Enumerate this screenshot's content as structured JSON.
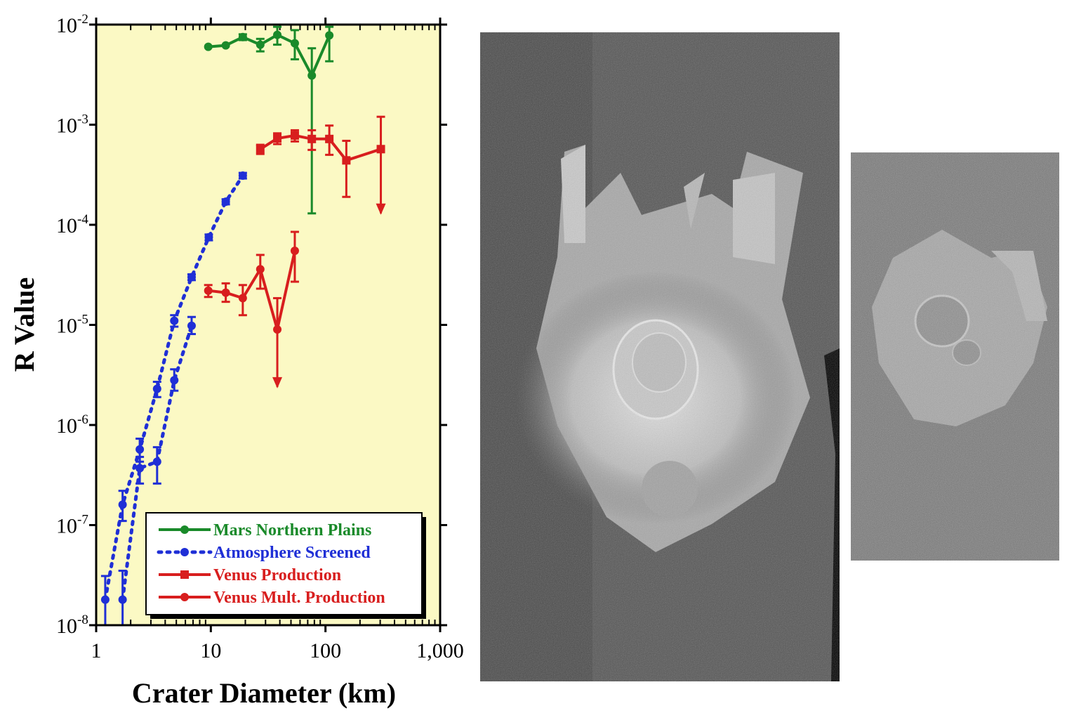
{
  "chart_data": {
    "type": "line",
    "xlabel": "Crater Diameter (km)",
    "ylabel": "R Value",
    "x_scale": "log",
    "y_scale": "log",
    "xlim": [
      1,
      1000
    ],
    "ylim": [
      1e-08,
      0.01
    ],
    "grid": false,
    "legend_position": "bottom-right",
    "background_color": "#fbf9c4",
    "x_ticks": [
      {
        "value": 1,
        "label": "1"
      },
      {
        "value": 10,
        "label": "10"
      },
      {
        "value": 100,
        "label": "100"
      },
      {
        "value": 1000,
        "label": "1,000"
      }
    ],
    "y_ticks": [
      {
        "value": 1e-08,
        "base": "10",
        "exp": "-8"
      },
      {
        "value": 1e-07,
        "base": "10",
        "exp": "-7"
      },
      {
        "value": 1e-06,
        "base": "10",
        "exp": "-6"
      },
      {
        "value": 1e-05,
        "base": "10",
        "exp": "-5"
      },
      {
        "value": 0.0001,
        "base": "10",
        "exp": "-4"
      },
      {
        "value": 0.001,
        "base": "10",
        "exp": "-3"
      },
      {
        "value": 0.01,
        "base": "10",
        "exp": "-2"
      }
    ],
    "series": [
      {
        "name": "Mars Northern Plains",
        "color": "#1a8a2a",
        "marker": "circle",
        "line": "solid",
        "points": [
          {
            "x": 9.5,
            "y": 0.006,
            "lo": 0.006,
            "hi": 0.006
          },
          {
            "x": 13.5,
            "y": 0.0062,
            "lo": 0.0062,
            "hi": 0.0062
          },
          {
            "x": 19,
            "y": 0.0075,
            "lo": 0.007,
            "hi": 0.008
          },
          {
            "x": 27,
            "y": 0.0063,
            "lo": 0.0054,
            "hi": 0.0072
          },
          {
            "x": 38,
            "y": 0.0079,
            "lo": 0.0063,
            "hi": 0.0095
          },
          {
            "x": 54,
            "y": 0.0065,
            "lo": 0.0045,
            "hi": 0.0088
          },
          {
            "x": 76,
            "y": 0.0031,
            "lo": 0.00013,
            "hi": 0.0058
          },
          {
            "x": 108,
            "y": 0.0078,
            "lo": 0.0043,
            "hi": 0.0095
          }
        ]
      },
      {
        "name": "Atmosphere Screened",
        "color": "#1f2fd6",
        "marker": "circle",
        "line": "dotted",
        "points": [
          {
            "x": 1.2,
            "y": 1.8e-08,
            "lo": 1e-08,
            "hi": 3.1e-08
          },
          {
            "x": 1.7,
            "y": 1.6e-07,
            "lo": 1.1e-07,
            "hi": 2.2e-07
          },
          {
            "x": 2.4,
            "y": 5.7e-07,
            "lo": 4.3e-07,
            "hi": 7.3e-07
          },
          {
            "x": 3.4,
            "y": 2.3e-06,
            "lo": 1.9e-06,
            "hi": 2.7e-06
          },
          {
            "x": 4.8,
            "y": 1.1e-05,
            "lo": 9.6e-06,
            "hi": 1.25e-05
          },
          {
            "x": 6.8,
            "y": 3e-05,
            "lo": 2.8e-05,
            "hi": 3.2e-05
          },
          {
            "x": 9.6,
            "y": 7.5e-05,
            "lo": 7e-05,
            "hi": 8e-05
          },
          {
            "x": 13.5,
            "y": 0.00017,
            "lo": 0.00016,
            "hi": 0.00018
          },
          {
            "x": 19,
            "y": 0.00031,
            "lo": 0.00029,
            "hi": 0.00033
          },
          {
            "x": 1.7,
            "y": 1.8e-08,
            "lo": 1e-08,
            "hi": 3.5e-08
          },
          {
            "x": 2.4,
            "y": 3.7e-07,
            "lo": 2.6e-07,
            "hi": 4.8e-07
          },
          {
            "x": 3.4,
            "y": 4.3e-07,
            "lo": 2.6e-07,
            "hi": 6e-07
          },
          {
            "x": 4.8,
            "y": 2.8e-06,
            "lo": 2.2e-06,
            "hi": 3.6e-06
          },
          {
            "x": 6.8,
            "y": 9.8e-06,
            "lo": 8.1e-06,
            "hi": 1.2e-05
          }
        ],
        "segments": [
          [
            0,
            1,
            2,
            3,
            4,
            5,
            6,
            7,
            8
          ],
          [
            9,
            10,
            11,
            12,
            13
          ]
        ]
      },
      {
        "name": "Venus Production",
        "color": "#d81e1e",
        "marker": "square",
        "line": "solid",
        "points": [
          {
            "x": 27,
            "y": 0.00057,
            "lo": 0.00051,
            "hi": 0.00063
          },
          {
            "x": 38,
            "y": 0.00073,
            "lo": 0.00064,
            "hi": 0.00082
          },
          {
            "x": 54,
            "y": 0.00078,
            "lo": 0.00068,
            "hi": 0.00088
          },
          {
            "x": 76,
            "y": 0.00072,
            "lo": 0.00056,
            "hi": 0.00088
          },
          {
            "x": 108,
            "y": 0.00072,
            "lo": 0.0005,
            "hi": 0.00098
          },
          {
            "x": 152,
            "y": 0.00044,
            "lo": 0.00019,
            "hi": 0.00069
          },
          {
            "x": 304,
            "y": 0.00057,
            "lo": 0.00013,
            "hi": 0.0012,
            "upper_limit": true
          }
        ]
      },
      {
        "name": "Venus Mult. Production",
        "color": "#d81e1e",
        "marker": "circle",
        "line": "solid",
        "points": [
          {
            "x": 9.5,
            "y": 2.2e-05,
            "lo": 1.9e-05,
            "hi": 2.5e-05
          },
          {
            "x": 13.5,
            "y": 2.1e-05,
            "lo": 1.7e-05,
            "hi": 2.6e-05
          },
          {
            "x": 19,
            "y": 1.85e-05,
            "lo": 1.25e-05,
            "hi": 2.5e-05
          },
          {
            "x": 27,
            "y": 3.6e-05,
            "lo": 2.3e-05,
            "hi": 5e-05
          },
          {
            "x": 38,
            "y": 9e-06,
            "lo": 2.4e-06,
            "hi": 1.85e-05,
            "upper_limit": true
          },
          {
            "x": 54,
            "y": 5.5e-05,
            "lo": 2.7e-05,
            "hi": 8.5e-05
          }
        ]
      }
    ]
  },
  "images": {
    "radar_main": {
      "icon": "venus-radar-crater-image-large"
    },
    "radar_small": {
      "icon": "venus-radar-crater-image-small"
    }
  }
}
